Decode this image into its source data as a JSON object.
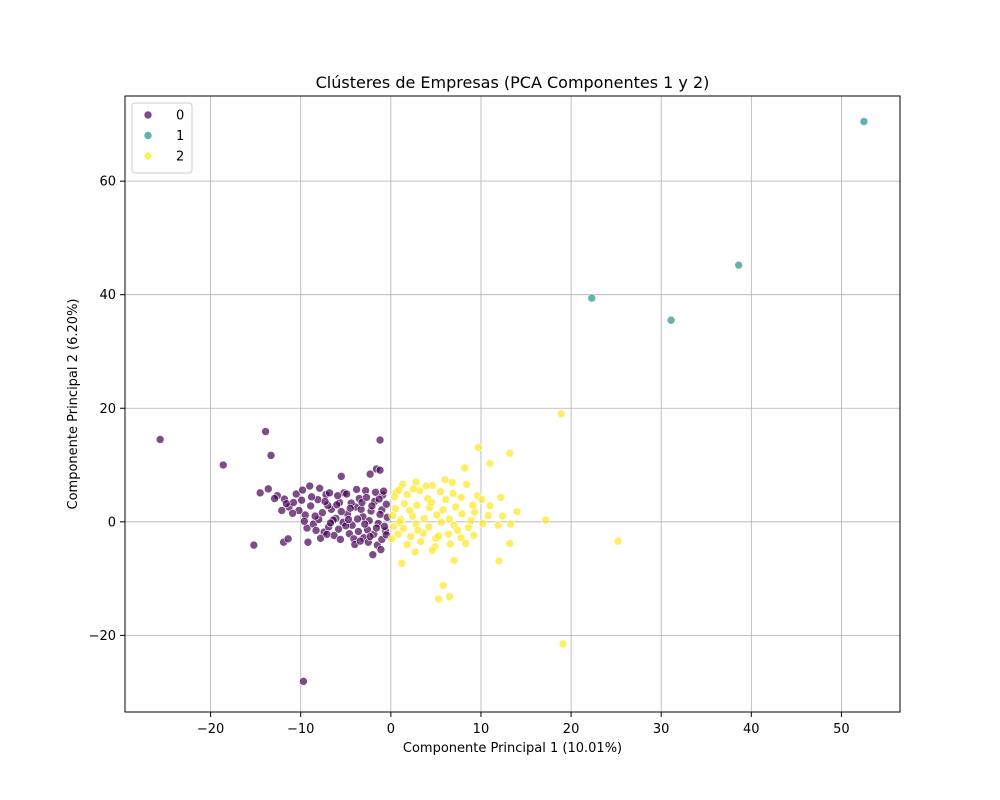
{
  "chart_data": {
    "type": "scatter",
    "title": "Clústeres de Empresas (PCA Componentes 1 y 2)",
    "xlabel": "Componente Principal 1 (10.01%)",
    "ylabel": "Componente Principal 2 (6.20%)",
    "xlim": [
      -29.5,
      56.5
    ],
    "ylim": [
      -33.5,
      75
    ],
    "xticks": [
      -20,
      -10,
      0,
      10,
      20,
      30,
      40,
      50
    ],
    "yticks": [
      -20,
      0,
      20,
      40,
      60
    ],
    "xtick_labels": [
      "−20",
      "−10",
      "0",
      "10",
      "20",
      "30",
      "40",
      "50"
    ],
    "ytick_labels": [
      "−20",
      "0",
      "20",
      "40",
      "60"
    ],
    "grid": true,
    "legend_position": "upper-left",
    "series": [
      {
        "name": "0",
        "color": "#440154",
        "points": [
          [
            -25.6,
            14.5
          ],
          [
            -18.6,
            10.0
          ],
          [
            -13.9,
            15.9
          ],
          [
            -13.3,
            11.7
          ],
          [
            -9.7,
            -28.1
          ],
          [
            -15.2,
            -4.1
          ],
          [
            -11.9,
            -3.6
          ],
          [
            -1.2,
            14.4
          ],
          [
            -1.6,
            9.3
          ],
          [
            -1.2,
            9.1
          ],
          [
            -2.3,
            8.4
          ],
          [
            -5.5,
            8.0
          ],
          [
            -14.5,
            5.1
          ],
          [
            -13.6,
            5.8
          ],
          [
            -12.6,
            4.6
          ],
          [
            -11.8,
            4.0
          ],
          [
            -11.3,
            2.6
          ],
          [
            -10.8,
            3.4
          ],
          [
            -10.2,
            2.0
          ],
          [
            -9.5,
            1.2
          ],
          [
            -8.9,
            2.8
          ],
          [
            -8.1,
            3.9
          ],
          [
            -7.6,
            1.6
          ],
          [
            -7.2,
            4.8
          ],
          [
            -6.6,
            2.2
          ],
          [
            -6.1,
            0.6
          ],
          [
            -5.7,
            3.4
          ],
          [
            -5.2,
            5.1
          ],
          [
            -4.8,
            1.4
          ],
          [
            -4.3,
            -0.6
          ],
          [
            -3.9,
            2.6
          ],
          [
            -3.5,
            4.1
          ],
          [
            -3.1,
            0.9
          ],
          [
            -2.6,
            -1.4
          ],
          [
            -2.2,
            1.9
          ],
          [
            -1.8,
            3.6
          ],
          [
            -1.4,
            -0.3
          ],
          [
            -1.0,
            2.1
          ],
          [
            -0.6,
            -1.6
          ],
          [
            -0.4,
            0.8
          ],
          [
            -9.3,
            -1.1
          ],
          [
            -8.6,
            -0.4
          ],
          [
            -8.0,
            0.4
          ],
          [
            -7.4,
            -1.8
          ],
          [
            -6.9,
            -0.9
          ],
          [
            -6.3,
            -2.4
          ],
          [
            -5.8,
            -1.3
          ],
          [
            -5.3,
            -0.1
          ],
          [
            -4.6,
            -2.1
          ],
          [
            -4.1,
            -3.0
          ],
          [
            -3.6,
            -1.7
          ],
          [
            -3.0,
            -2.8
          ],
          [
            -2.5,
            -3.6
          ],
          [
            -1.9,
            -2.2
          ],
          [
            -1.5,
            -4.1
          ],
          [
            -2.0,
            -5.8
          ],
          [
            -1.1,
            -4.9
          ],
          [
            -4.0,
            -4.0
          ],
          [
            -7.8,
            -2.9
          ],
          [
            -9.2,
            -3.6
          ],
          [
            -10.5,
            4.9
          ],
          [
            -9.8,
            5.6
          ],
          [
            -9.0,
            6.3
          ],
          [
            -7.9,
            5.9
          ],
          [
            -6.8,
            5.1
          ],
          [
            -5.9,
            4.6
          ],
          [
            -4.9,
            4.9
          ],
          [
            -3.8,
            5.7
          ],
          [
            -2.8,
            5.5
          ],
          [
            -1.7,
            5.2
          ],
          [
            -0.9,
            4.7
          ],
          [
            -0.5,
            3.1
          ],
          [
            -8.4,
            1.0
          ],
          [
            -7.0,
            2.9
          ],
          [
            -5.5,
            1.8
          ],
          [
            -4.4,
            3.3
          ],
          [
            -3.3,
            2.2
          ],
          [
            -2.4,
            0.2
          ],
          [
            -1.2,
            1.3
          ],
          [
            -0.7,
            -0.8
          ],
          [
            -6.4,
            0.3
          ],
          [
            -5.0,
            -0.7
          ],
          [
            -3.7,
            0.5
          ],
          [
            -2.9,
            -0.4
          ],
          [
            -1.6,
            -1.1
          ],
          [
            -10.9,
            1.5
          ],
          [
            -11.6,
            3.2
          ],
          [
            -12.9,
            4.1
          ],
          [
            -9.9,
            3.8
          ],
          [
            -8.8,
            4.4
          ],
          [
            -7.3,
            3.6
          ],
          [
            -6.0,
            3.0
          ],
          [
            -4.5,
            2.4
          ],
          [
            -3.2,
            3.4
          ],
          [
            -2.1,
            2.8
          ],
          [
            -1.3,
            4.0
          ],
          [
            -0.8,
            5.4
          ],
          [
            -2.7,
            4.3
          ],
          [
            -4.7,
            0.4
          ],
          [
            -6.7,
            -0.2
          ],
          [
            -8.3,
            -1.5
          ],
          [
            -5.6,
            -3.1
          ],
          [
            -3.4,
            -3.4
          ],
          [
            -2.3,
            -2.6
          ],
          [
            -1.0,
            -3.1
          ],
          [
            -0.5,
            -2.3
          ],
          [
            -7.1,
            -2.2
          ],
          [
            -9.6,
            0.1
          ],
          [
            -11.4,
            -3.0
          ],
          [
            -12.1,
            2.0
          ]
        ]
      },
      {
        "name": "1",
        "color": "#21918c",
        "points": [
          [
            52.5,
            70.5
          ],
          [
            38.6,
            45.2
          ],
          [
            22.3,
            39.4
          ],
          [
            31.1,
            35.5
          ]
        ]
      },
      {
        "name": "2",
        "color": "#fde725",
        "points": [
          [
            18.9,
            19.0
          ],
          [
            9.7,
            13.1
          ],
          [
            13.2,
            12.1
          ],
          [
            11.0,
            10.3
          ],
          [
            8.2,
            9.5
          ],
          [
            8.4,
            6.6
          ],
          [
            6.0,
            7.4
          ],
          [
            4.6,
            6.4
          ],
          [
            2.8,
            7.0
          ],
          [
            1.3,
            6.6
          ],
          [
            0.6,
            5.3
          ],
          [
            1.8,
            4.8
          ],
          [
            3.2,
            5.5
          ],
          [
            4.1,
            4.1
          ],
          [
            5.5,
            5.3
          ],
          [
            6.9,
            5.0
          ],
          [
            7.8,
            4.3
          ],
          [
            9.6,
            4.6
          ],
          [
            10.1,
            3.9
          ],
          [
            12.2,
            4.3
          ],
          [
            11.0,
            2.8
          ],
          [
            9.1,
            2.9
          ],
          [
            7.2,
            2.6
          ],
          [
            5.8,
            2.1
          ],
          [
            4.3,
            2.5
          ],
          [
            2.9,
            2.9
          ],
          [
            1.5,
            3.2
          ],
          [
            0.5,
            2.3
          ],
          [
            0.2,
            1.1
          ],
          [
            1.1,
            0.4
          ],
          [
            2.4,
            1.0
          ],
          [
            3.7,
            0.6
          ],
          [
            5.1,
            1.2
          ],
          [
            6.5,
            0.5
          ],
          [
            7.9,
            1.4
          ],
          [
            9.3,
            1.7
          ],
          [
            10.8,
            1.1
          ],
          [
            12.4,
            1.0
          ],
          [
            14.0,
            1.8
          ],
          [
            13.3,
            -0.4
          ],
          [
            17.2,
            0.3
          ],
          [
            11.9,
            -0.6
          ],
          [
            10.2,
            -0.3
          ],
          [
            8.6,
            -1.0
          ],
          [
            7.0,
            -0.6
          ],
          [
            5.6,
            -0.1
          ],
          [
            4.2,
            -0.9
          ],
          [
            2.8,
            -0.4
          ],
          [
            1.4,
            -1.2
          ],
          [
            0.3,
            -0.8
          ],
          [
            0.8,
            -2.2
          ],
          [
            2.2,
            -2.6
          ],
          [
            3.6,
            -2.0
          ],
          [
            5.0,
            -2.9
          ],
          [
            6.4,
            -2.2
          ],
          [
            7.8,
            -2.8
          ],
          [
            9.2,
            -2.4
          ],
          [
            8.3,
            -3.8
          ],
          [
            6.6,
            -3.9
          ],
          [
            4.9,
            -4.4
          ],
          [
            3.3,
            -3.5
          ],
          [
            1.8,
            -4.0
          ],
          [
            1.2,
            -7.3
          ],
          [
            2.7,
            -5.3
          ],
          [
            4.6,
            -5.0
          ],
          [
            7.0,
            -6.8
          ],
          [
            13.2,
            -3.8
          ],
          [
            12.0,
            -6.9
          ],
          [
            25.2,
            -3.4
          ],
          [
            5.8,
            -11.2
          ],
          [
            6.5,
            -13.2
          ],
          [
            5.3,
            -13.6
          ],
          [
            19.1,
            -21.5
          ],
          [
            0.4,
            4.4
          ],
          [
            1.0,
            -0.1
          ],
          [
            2.1,
            2.0
          ],
          [
            3.0,
            -1.5
          ],
          [
            4.5,
            3.4
          ],
          [
            5.3,
            -2.5
          ],
          [
            6.1,
            3.9
          ],
          [
            7.4,
            -1.5
          ],
          [
            8.9,
            0.2
          ],
          [
            0.1,
            -3.0
          ],
          [
            0.9,
            5.6
          ],
          [
            3.9,
            6.3
          ],
          [
            2.5,
            5.8
          ],
          [
            6.8,
            6.9
          ]
        ]
      }
    ]
  }
}
